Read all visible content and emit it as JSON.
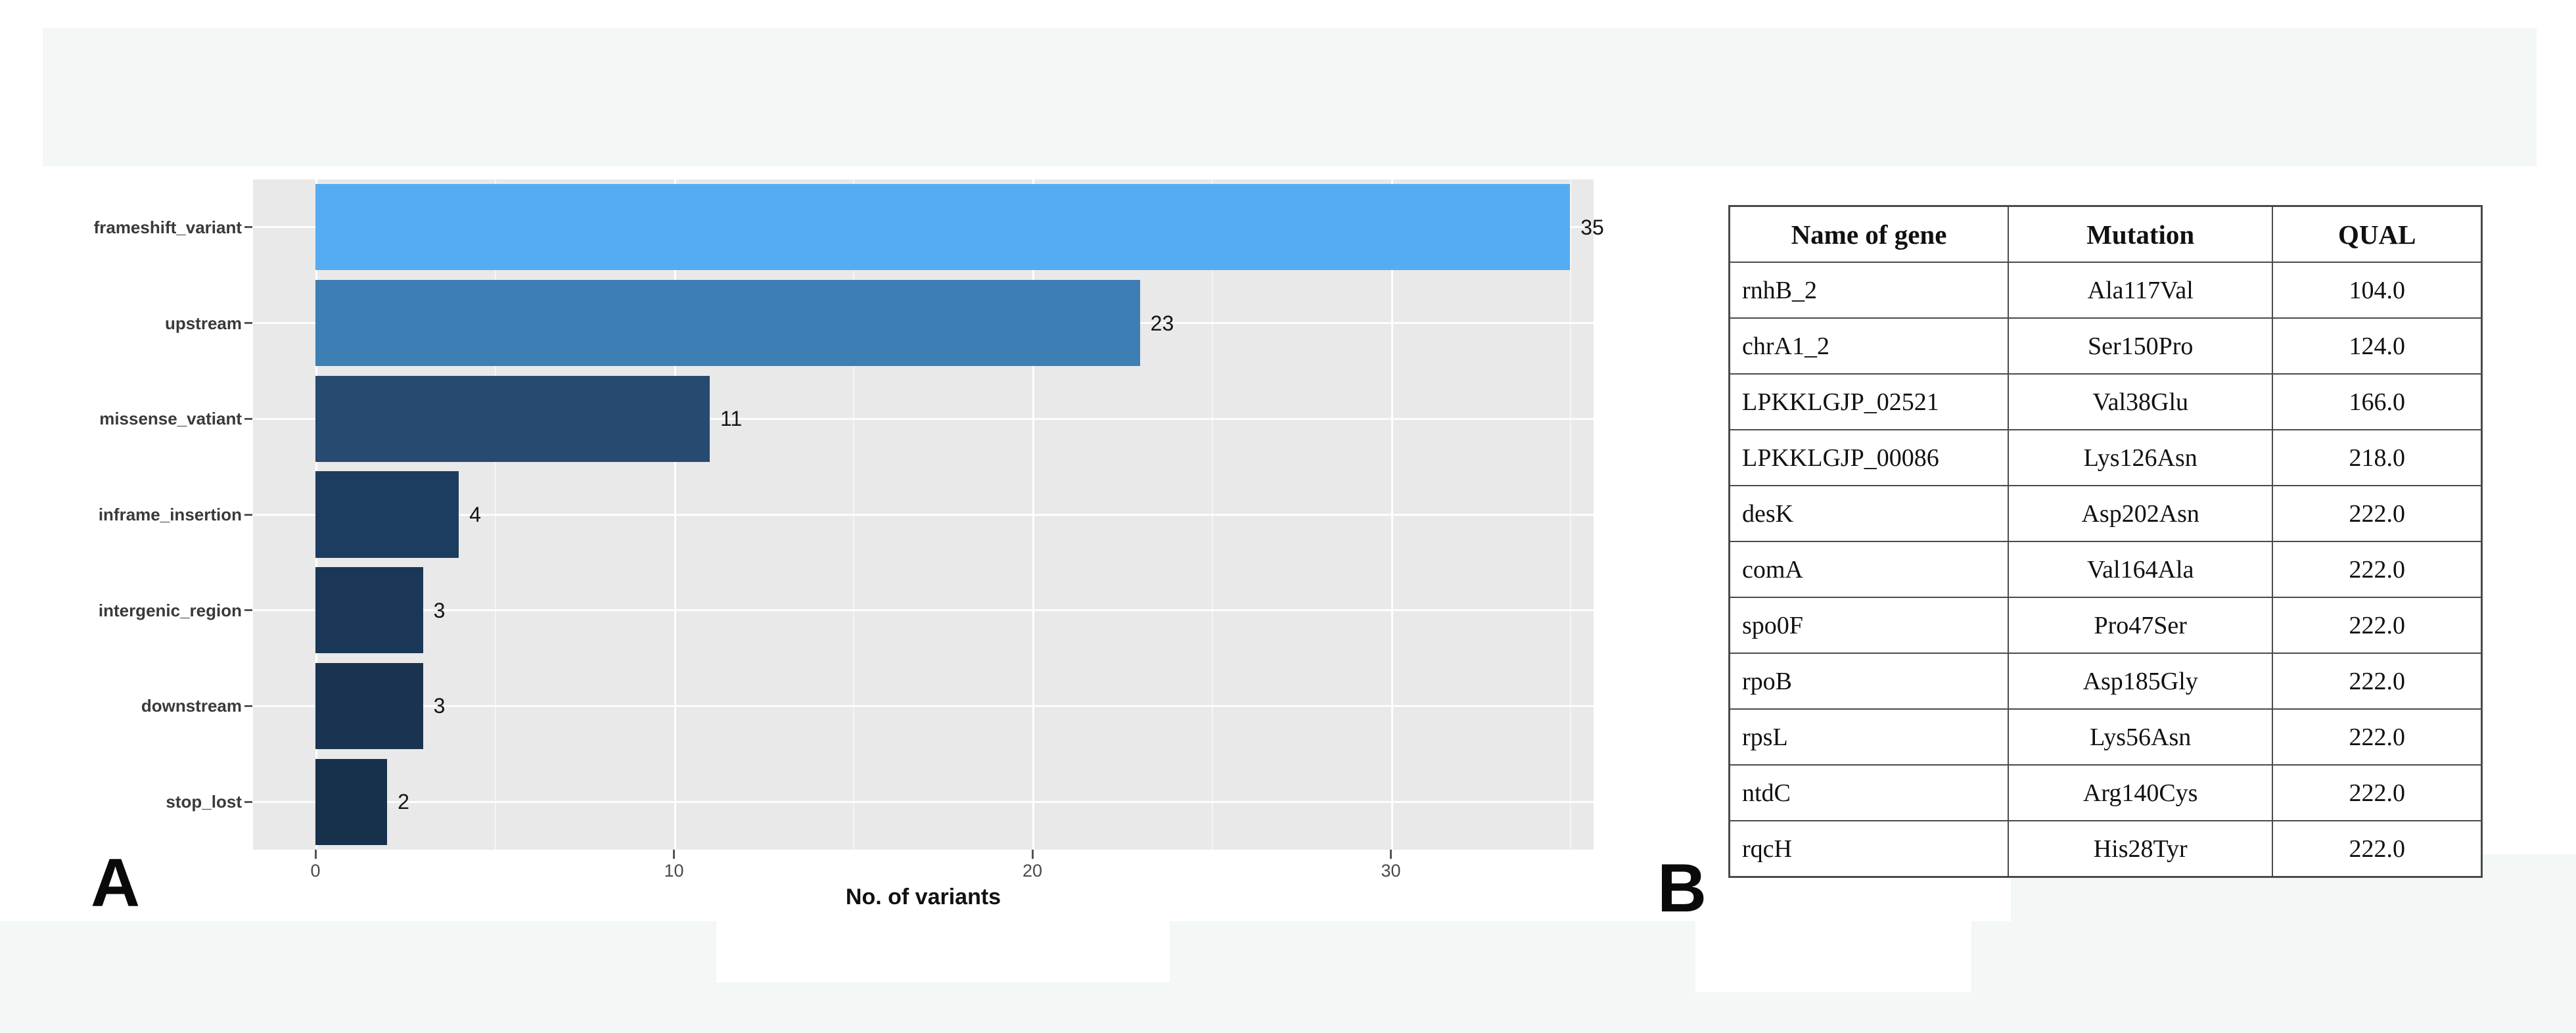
{
  "figure": {
    "panel_a_label": "A",
    "panel_b_label": "B"
  },
  "chart_data": {
    "type": "bar",
    "orientation": "horizontal",
    "title": "",
    "xlabel": "No. of variants",
    "ylabel": "",
    "categories": [
      "frameshift_variant",
      "upstream",
      "missense_vatiant",
      "inframe_insertion",
      "intergenic_region",
      "downstream",
      "stop_lost"
    ],
    "values": [
      35,
      23,
      11,
      4,
      3,
      3,
      2
    ],
    "value_labels": [
      "35",
      "23",
      "11",
      "4",
      "3",
      "3",
      "2"
    ],
    "bar_colors": [
      "#55acf2",
      "#3d7eb5",
      "#264a70",
      "#1d3d60",
      "#1a3757",
      "#193351",
      "#17304c"
    ],
    "x_ticks": [
      0,
      10,
      20,
      30
    ],
    "x_tick_labels": [
      "0",
      "10",
      "20",
      "30"
    ],
    "x_minor_ticks": [
      5,
      15,
      25,
      35
    ],
    "xlim": [
      0,
      36.75
    ],
    "grid": "white major and minor gridlines on gray panel",
    "legend": "none",
    "panel_background": "#e9e9e9"
  },
  "table": {
    "headers": [
      "Name of gene",
      "Mutation",
      "QUAL"
    ],
    "rows": [
      [
        "rnhB_2",
        "Ala117Val",
        "104.0"
      ],
      [
        "chrA1_2",
        "Ser150Pro",
        "124.0"
      ],
      [
        "LPKKLGJP_02521",
        "Val38Glu",
        "166.0"
      ],
      [
        "LPKKLGJP_00086",
        "Lys126Asn",
        "218.0"
      ],
      [
        "desK",
        "Asp202Asn",
        "222.0"
      ],
      [
        "comA",
        "Val164Ala",
        "222.0"
      ],
      [
        "spo0F",
        "Pro47Ser",
        "222.0"
      ],
      [
        "rpoB",
        "Asp185Gly",
        "222.0"
      ],
      [
        "rpsL",
        "Lys56Asn",
        "222.0"
      ],
      [
        "ntdC",
        "Arg140Cys",
        "222.0"
      ],
      [
        "rqcH",
        "His28Tyr",
        "222.0"
      ]
    ]
  },
  "colors": {
    "page_background": "#ffffff",
    "band_background": "#f3f7f6",
    "panel_background": "#e9e9e9",
    "table_border": "#4a4a4a",
    "axis_text": "#4a4a4a",
    "category_text": "#3a3a3a"
  }
}
